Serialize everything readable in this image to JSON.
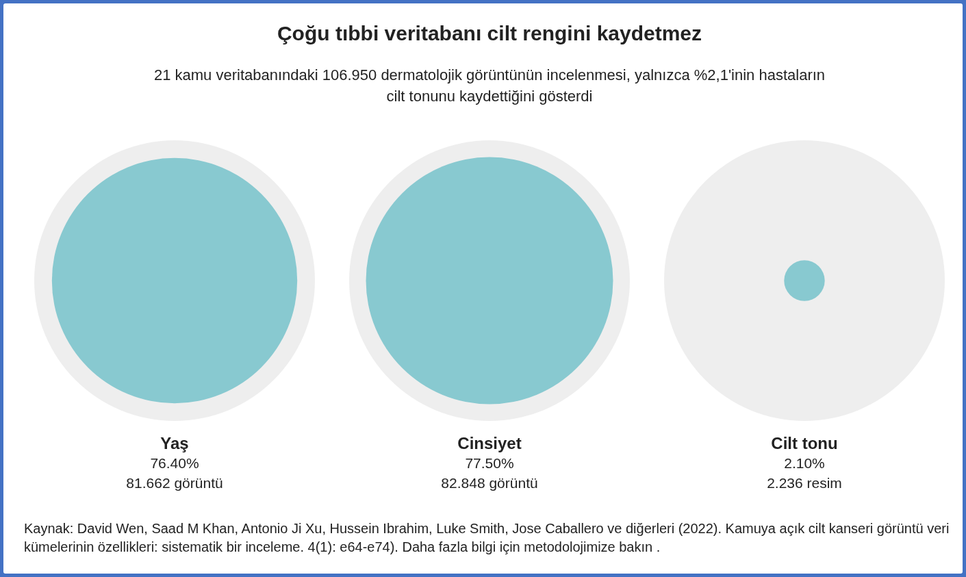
{
  "chart_data": {
    "type": "other",
    "title": "Çoğu tıbbi veritabanı cilt rengini kaydetmez",
    "subtitle": "21 kamu veritabanındaki 106.950 dermatolojik görüntünün incelenmesi, yalnızca %2,1'inin hastaların\ncilt tonunu kaydettiğini gösterdi",
    "categories": [
      "Yaş",
      "Cinsiyet",
      "Cilt tonu"
    ],
    "series": [
      {
        "color": "#88c9d0",
        "values": [
          76.4,
          77.5,
          2.1
        ],
        "value_labels": [
          "76.40%",
          "77.50%",
          "2.10%"
        ]
      }
    ],
    "annotations": [
      {
        "text": "81.662 görüntü",
        "x": "Yaş"
      },
      {
        "text": "82.848 görüntü",
        "x": "Cinsiyet"
      },
      {
        "text": "2.236 resim",
        "x": "Cilt tonu"
      },
      "Kaynak: David Wen, Saad M Khan, Antonio Ji Xu, Hussein Ibrahim, Luke Smith, Jose Caballero ve diğerleri (2022). Kamuya açık cilt kanseri görüntü veri\nkümelerinin özellikleri: sistematik bir inceleme. 4(1): e64-e74). Daha fazla bilgi için metodolojimize bakın ."
    ]
  }
}
